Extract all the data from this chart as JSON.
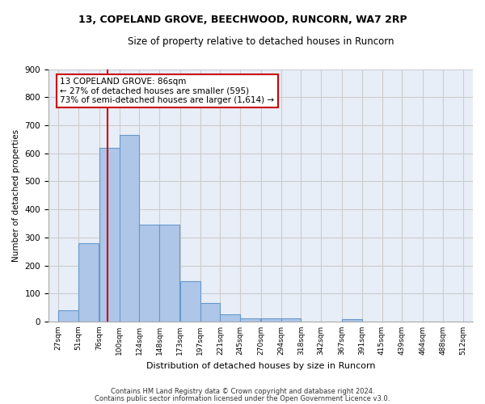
{
  "title1": "13, COPELAND GROVE, BEECHWOOD, RUNCORN, WA7 2RP",
  "title2": "Size of property relative to detached houses in Runcorn",
  "xlabel": "Distribution of detached houses by size in Runcorn",
  "ylabel": "Number of detached properties",
  "footer1": "Contains HM Land Registry data © Crown copyright and database right 2024.",
  "footer2": "Contains public sector information licensed under the Open Government Licence v3.0.",
  "annotation_line1": "13 COPELAND GROVE: 86sqm",
  "annotation_line2": "← 27% of detached houses are smaller (595)",
  "annotation_line3": "73% of semi-detached houses are larger (1,614) →",
  "bar_edges": [
    27,
    51,
    76,
    100,
    124,
    148,
    173,
    197,
    221,
    245,
    270,
    294,
    318,
    342,
    367,
    391,
    415,
    439,
    464,
    488,
    512
  ],
  "bar_heights": [
    40,
    280,
    620,
    665,
    345,
    345,
    145,
    65,
    25,
    12,
    10,
    10,
    0,
    0,
    8,
    0,
    0,
    0,
    0,
    0,
    0
  ],
  "bar_color": "#aec6e8",
  "bar_edge_color": "#6699cc",
  "vline_color": "#cc0000",
  "vline_x": 86,
  "annotation_box_color": "#cc0000",
  "ylim": [
    0,
    900
  ],
  "yticks": [
    0,
    100,
    200,
    300,
    400,
    500,
    600,
    700,
    800,
    900
  ],
  "grid_color": "#cccccc",
  "bg_color": "#e8eef8"
}
